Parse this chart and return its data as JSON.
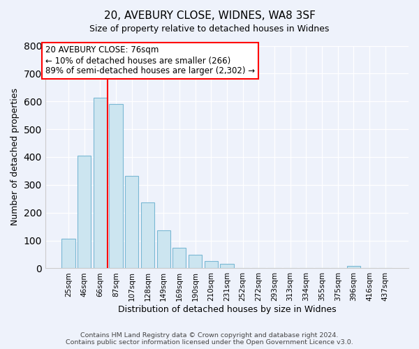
{
  "title": "20, AVEBURY CLOSE, WIDNES, WA8 3SF",
  "subtitle": "Size of property relative to detached houses in Widnes",
  "xlabel": "Distribution of detached houses by size in Widnes",
  "ylabel": "Number of detached properties",
  "bar_labels": [
    "25sqm",
    "46sqm",
    "66sqm",
    "87sqm",
    "107sqm",
    "128sqm",
    "149sqm",
    "169sqm",
    "190sqm",
    "210sqm",
    "231sqm",
    "252sqm",
    "272sqm",
    "293sqm",
    "313sqm",
    "334sqm",
    "355sqm",
    "375sqm",
    "396sqm",
    "416sqm",
    "437sqm"
  ],
  "bar_values": [
    107,
    405,
    614,
    591,
    333,
    237,
    136,
    75,
    49,
    25,
    15,
    0,
    0,
    0,
    0,
    0,
    0,
    0,
    8,
    0,
    0
  ],
  "bar_color": "#cce5f0",
  "bar_edge_color": "#7ab8d4",
  "vline_color": "red",
  "annotation_title": "20 AVEBURY CLOSE: 76sqm",
  "annotation_line1": "← 10% of detached houses are smaller (266)",
  "annotation_line2": "89% of semi-detached houses are larger (2,302) →",
  "annotation_box_color": "white",
  "annotation_box_edge": "red",
  "ylim": [
    0,
    800
  ],
  "yticks": [
    0,
    100,
    200,
    300,
    400,
    500,
    600,
    700,
    800
  ],
  "footer1": "Contains HM Land Registry data © Crown copyright and database right 2024.",
  "footer2": "Contains public sector information licensed under the Open Government Licence v3.0.",
  "bg_color": "#eef2fb",
  "grid_color": "#ffffff",
  "title_fontsize": 11,
  "subtitle_fontsize": 9,
  "ylabel_fontsize": 9,
  "xlabel_fontsize": 9,
  "tick_fontsize": 7.5,
  "annotation_fontsize": 8.5,
  "footer_fontsize": 6.8
}
